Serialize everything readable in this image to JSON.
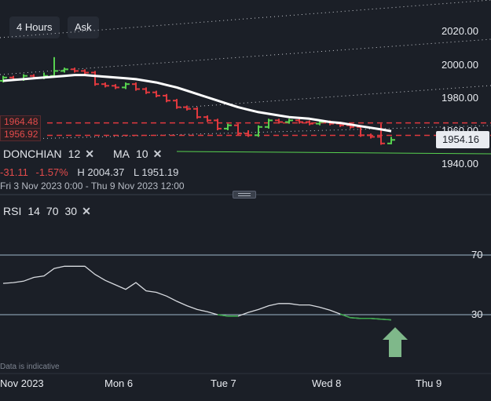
{
  "toolbar": {
    "timeframe_label": "4 Hours",
    "price_side_label": "Ask"
  },
  "price_axis": {
    "ticks": [
      "2020.00",
      "2000.00",
      "1980.00",
      "1960.00",
      "1940.00"
    ],
    "current_price": "1954.16"
  },
  "donchian_levels": {
    "upper": "1964.48",
    "lower": "1956.92"
  },
  "indicators": {
    "donchian_name": "DONCHIAN",
    "donchian_period": "12",
    "ma_name": "MA",
    "ma_period": "10",
    "rsi_name": "RSI",
    "rsi_period": "14",
    "rsi_upper": "70",
    "rsi_lower": "30"
  },
  "stats": {
    "change": "-31.11",
    "change_pct": "-1.57%",
    "high_label": "H 2004.37",
    "low_label": "L 1951.19",
    "range": "Fri 3 Nov 2023 0:00 - Thu 9 Nov 2023 12:00"
  },
  "rsi_axis": {
    "label_70": "70",
    "label_30": "30"
  },
  "time_axis": [
    "Nov 2023",
    "Mon 6",
    "Tue 7",
    "Wed 8",
    "Thu 9"
  ],
  "disclaimer": "Data is indicative",
  "colors": {
    "background": "#1b1f27",
    "up": "#57d14f",
    "down": "#e0393e",
    "ma_line": "#ffffff",
    "rsi_line": "#d8dbe0",
    "rsi_oversold": "#3aa84a",
    "arrow": "#7fb88a"
  },
  "chart_data": [
    {
      "type": "candlestick",
      "title": "",
      "ylim": [
        1935,
        2030
      ],
      "yticks": [
        1940,
        1960,
        1980,
        2000,
        2020
      ],
      "x_labels": [
        "Nov 2023",
        "Mon 6",
        "Tue 7",
        "Wed 8",
        "Thu 9"
      ],
      "candles": [
        {
          "o": 1990,
          "c": 1992,
          "h": 1993,
          "l": 1989
        },
        {
          "o": 1992,
          "c": 1991,
          "h": 1993,
          "l": 1990
        },
        {
          "o": 1991,
          "c": 1993,
          "h": 1994,
          "l": 1990
        },
        {
          "o": 1993,
          "c": 1992,
          "h": 1994,
          "l": 1991
        },
        {
          "o": 1992,
          "c": 1993,
          "h": 1995,
          "l": 1991
        },
        {
          "o": 1993,
          "c": 1996,
          "h": 2004.37,
          "l": 1992
        },
        {
          "o": 1996,
          "c": 1997,
          "h": 1998,
          "l": 1995
        },
        {
          "o": 1997,
          "c": 1996,
          "h": 1998,
          "l": 1995
        },
        {
          "o": 1996,
          "c": 1995,
          "h": 1997,
          "l": 1994
        },
        {
          "o": 1995,
          "c": 1988,
          "h": 1996,
          "l": 1987
        },
        {
          "o": 1988,
          "c": 1987,
          "h": 1989,
          "l": 1986
        },
        {
          "o": 1987,
          "c": 1986,
          "h": 1988,
          "l": 1985
        },
        {
          "o": 1986,
          "c": 1988,
          "h": 1989,
          "l": 1985
        },
        {
          "o": 1988,
          "c": 1985,
          "h": 1989,
          "l": 1984
        },
        {
          "o": 1985,
          "c": 1983,
          "h": 1986,
          "l": 1982
        },
        {
          "o": 1983,
          "c": 1981,
          "h": 1984,
          "l": 1980
        },
        {
          "o": 1981,
          "c": 1978,
          "h": 1982,
          "l": 1977
        },
        {
          "o": 1978,
          "c": 1974,
          "h": 1979,
          "l": 1973
        },
        {
          "o": 1974,
          "c": 1973,
          "h": 1975,
          "l": 1972
        },
        {
          "o": 1973,
          "c": 1968,
          "h": 1974,
          "l": 1967
        },
        {
          "o": 1968,
          "c": 1966,
          "h": 1969,
          "l": 1965
        },
        {
          "o": 1966,
          "c": 1961,
          "h": 1967,
          "l": 1960
        },
        {
          "o": 1961,
          "c": 1963,
          "h": 1964,
          "l": 1960
        },
        {
          "o": 1963,
          "c": 1958,
          "h": 1964,
          "l": 1957
        },
        {
          "o": 1958,
          "c": 1957,
          "h": 1960,
          "l": 1956
        },
        {
          "o": 1957,
          "c": 1962,
          "h": 1963,
          "l": 1956
        },
        {
          "o": 1962,
          "c": 1966,
          "h": 1967,
          "l": 1961
        },
        {
          "o": 1966,
          "c": 1965,
          "h": 1967,
          "l": 1964
        },
        {
          "o": 1965,
          "c": 1966,
          "h": 1967,
          "l": 1964
        },
        {
          "o": 1966,
          "c": 1965,
          "h": 1967,
          "l": 1964
        },
        {
          "o": 1965,
          "c": 1964,
          "h": 1966,
          "l": 1963
        },
        {
          "o": 1964,
          "c": 1965,
          "h": 1966,
          "l": 1963
        },
        {
          "o": 1965,
          "c": 1964,
          "h": 1966,
          "l": 1963
        },
        {
          "o": 1964,
          "c": 1963,
          "h": 1965,
          "l": 1962
        },
        {
          "o": 1963,
          "c": 1962,
          "h": 1964,
          "l": 1961
        },
        {
          "o": 1962,
          "c": 1957,
          "h": 1963,
          "l": 1956
        },
        {
          "o": 1957,
          "c": 1956,
          "h": 1958,
          "l": 1955
        },
        {
          "o": 1956,
          "c": 1952,
          "h": 1964,
          "l": 1951.19
        },
        {
          "o": 1952,
          "c": 1954.16,
          "h": 1956,
          "l": 1951.5
        }
      ],
      "moving_average": {
        "name": "MA 10",
        "values": [
          1990,
          1990.5,
          1991,
          1991.5,
          1992,
          1992.5,
          1993,
          1993.5,
          1993.5,
          1993,
          1992.5,
          1992,
          1991.5,
          1991,
          1990,
          1989,
          1987.5,
          1986,
          1984,
          1982,
          1980,
          1978,
          1976,
          1974,
          1972.5,
          1971,
          1970,
          1969,
          1968,
          1967.5,
          1967,
          1966,
          1965,
          1964.5,
          1963.5,
          1962.5,
          1961.5,
          1960.5,
          1959.5
        ]
      },
      "donchian": {
        "name": "DONCHIAN 12",
        "upper": 1964.48,
        "lower": 1956.92
      }
    },
    {
      "type": "line",
      "title": "RSI 14",
      "ylim": [
        0,
        100
      ],
      "reference_lines": [
        70,
        30
      ],
      "series": [
        {
          "name": "RSI",
          "values": [
            51,
            51.5,
            52.5,
            55,
            56,
            61,
            62.5,
            62.5,
            62.5,
            57,
            53,
            50,
            47,
            51.5,
            46,
            45,
            42.5,
            39,
            36,
            33.5,
            32,
            30,
            29,
            29,
            31.5,
            33.5,
            36,
            37.5,
            37.5,
            36.5,
            36.5,
            35,
            33,
            30.5,
            28,
            27.5,
            27.5,
            27,
            26.5
          ]
        }
      ]
    }
  ]
}
